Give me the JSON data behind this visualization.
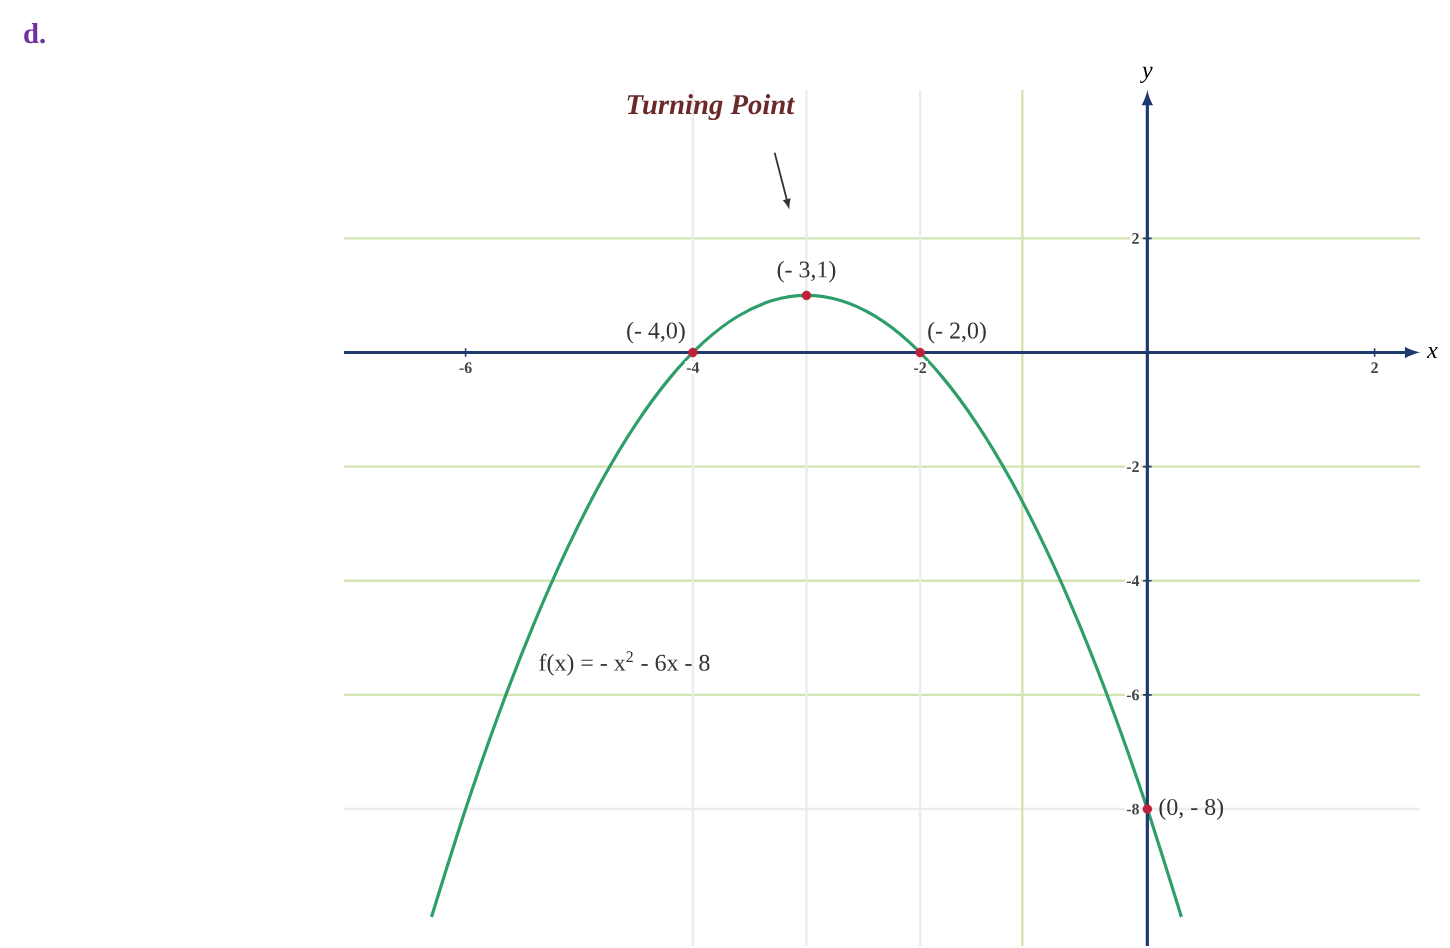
{
  "chart_data": {
    "type": "line",
    "title": "d.",
    "xlabel": "x",
    "ylabel": "y",
    "xlim": [
      -7.07,
      2.4
    ],
    "ylim": [
      -10.4,
      4.6
    ],
    "xticks": [
      -6,
      -4,
      -2,
      2
    ],
    "yticks": [
      2,
      -2,
      -4,
      -6,
      -8
    ],
    "series": [
      {
        "color": "#2e9e6a",
        "x": [
          -6.3,
          -6.0,
          -5.7,
          -5.4,
          -5.1,
          -4.8,
          -4.5,
          -4.2,
          -3.9,
          -3.6,
          -3.3,
          -3.0,
          -2.7,
          -2.4,
          -2.1,
          -1.8,
          -1.5,
          -1.2,
          -0.9,
          -0.6,
          -0.3,
          0,
          0.3
        ],
        "values": [
          -9.89,
          -8,
          -6.29,
          -4.76,
          -3.41,
          -2.24,
          -1.25,
          -0.44,
          0.19,
          0.64,
          0.91,
          1,
          0.91,
          0.64,
          0.19,
          -0.44,
          -1.25,
          -2.24,
          -3.41,
          -4.76,
          -6.29,
          -8,
          -9.89
        ]
      },
      {
        "type": "scatter",
        "color": "#c0203a",
        "marker": "circle",
        "x": [
          -4,
          -3,
          -2,
          0
        ],
        "values": [
          0,
          1,
          0,
          -8
        ]
      }
    ],
    "ref_lines": [
      {
        "axis": "y",
        "value": 2,
        "color": "#d2e4b0"
      },
      {
        "axis": "y",
        "value": -2,
        "color": "#d2e4b0"
      },
      {
        "axis": "y",
        "value": -4,
        "color": "#d2e4b0"
      },
      {
        "axis": "y",
        "value": -6,
        "color": "#d2e4b0"
      },
      {
        "axis": "y",
        "value": -8,
        "color": "#ececec"
      },
      {
        "axis": "x",
        "value": -4,
        "color": "#ececec"
      },
      {
        "axis": "x",
        "value": -3,
        "color": "#ececec"
      },
      {
        "axis": "x",
        "value": -2,
        "color": "#ececec"
      },
      {
        "axis": "x",
        "value": -1.1,
        "color": "#d2e4b0"
      }
    ],
    "annotations": [
      {
        "text": "(- 4,0)",
        "x": -4,
        "y": 0
      },
      {
        "text": "(- 3,1)",
        "x": -3,
        "y": 1
      },
      {
        "text": "(- 2,0)",
        "x": -2,
        "y": 0
      },
      {
        "text": "(0, - 8)",
        "x": 0,
        "y": -8
      },
      "Turning Point",
      "f(x) = - x$^{2}$ - 6x - 8"
    ]
  }
}
